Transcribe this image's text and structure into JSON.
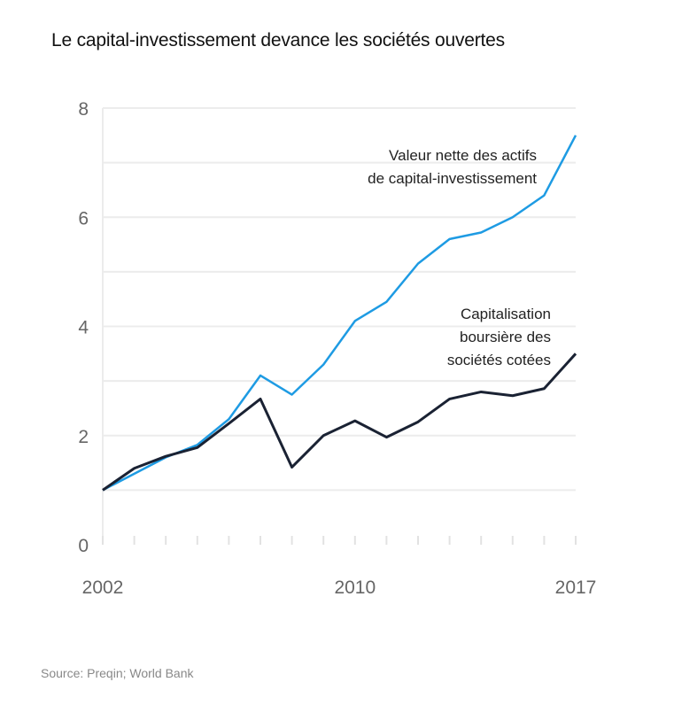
{
  "chart_data": {
    "type": "line",
    "title": "Le capital-investissement devance les sociétés ouvertes",
    "source": "Source: Preqin; World Bank",
    "x": [
      2002,
      2003,
      2004,
      2005,
      2006,
      2007,
      2008,
      2009,
      2010,
      2011,
      2012,
      2013,
      2014,
      2015,
      2016,
      2017
    ],
    "xticks": [
      "2002",
      "2010",
      "2017"
    ],
    "yticks": [
      "0",
      "2",
      "4",
      "6",
      "8"
    ],
    "ylim": [
      0,
      8
    ],
    "xlim": [
      2002,
      2017
    ],
    "grid": "horizontal",
    "series": [
      {
        "name": "Valeur nette des actifs de capital-investissement",
        "label_lines": [
          "Valeur nette des actifs",
          "de capital-investissement"
        ],
        "color": "#1e9be3",
        "values": [
          1.0,
          1.3,
          1.6,
          1.83,
          2.3,
          3.1,
          2.75,
          3.3,
          4.1,
          4.45,
          5.15,
          5.6,
          5.72,
          6.0,
          6.4,
          7.5
        ]
      },
      {
        "name": "Capitalisation boursière des sociétés cotées",
        "label_lines": [
          "Capitalisation",
          "boursière des",
          "sociétés cotées"
        ],
        "color": "#1a2233",
        "values": [
          1.0,
          1.4,
          1.62,
          1.78,
          2.22,
          2.67,
          1.42,
          2.0,
          2.27,
          1.97,
          2.25,
          2.67,
          2.8,
          2.73,
          2.86,
          3.5
        ]
      }
    ]
  }
}
